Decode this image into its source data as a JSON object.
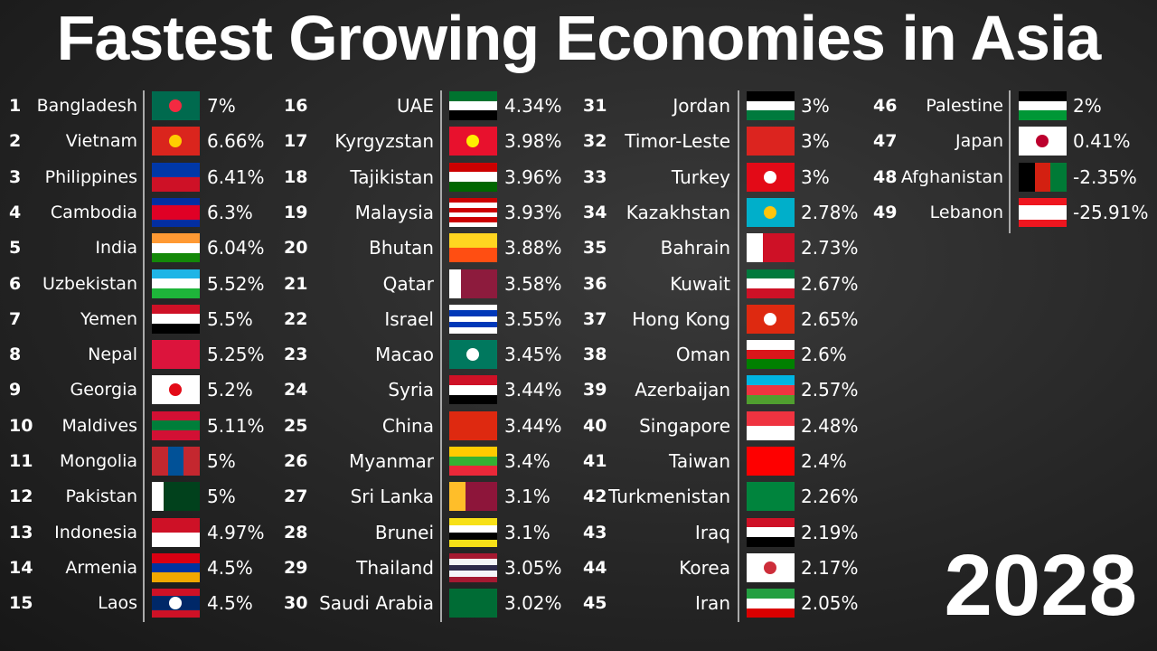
{
  "title": "Fastest Growing Economies in Asia",
  "year": "2028",
  "rows": [
    {
      "rank": "1",
      "country": "Bangladesh",
      "value": "7%"
    },
    {
      "rank": "2",
      "country": "Vietnam",
      "value": "6.66%"
    },
    {
      "rank": "3",
      "country": "Philippines",
      "value": "6.41%"
    },
    {
      "rank": "4",
      "country": "Cambodia",
      "value": "6.3%"
    },
    {
      "rank": "5",
      "country": "India",
      "value": "6.04%"
    },
    {
      "rank": "6",
      "country": "Uzbekistan",
      "value": "5.52%"
    },
    {
      "rank": "7",
      "country": "Yemen",
      "value": "5.5%"
    },
    {
      "rank": "8",
      "country": "Nepal",
      "value": "5.25%"
    },
    {
      "rank": "9",
      "country": "Georgia",
      "value": "5.2%"
    },
    {
      "rank": "10",
      "country": "Maldives",
      "value": "5.11%"
    },
    {
      "rank": "11",
      "country": "Mongolia",
      "value": "5%"
    },
    {
      "rank": "12",
      "country": "Pakistan",
      "value": "5%"
    },
    {
      "rank": "13",
      "country": "Indonesia",
      "value": "4.97%"
    },
    {
      "rank": "14",
      "country": "Armenia",
      "value": "4.5%"
    },
    {
      "rank": "15",
      "country": "Laos",
      "value": "4.5%"
    },
    {
      "rank": "16",
      "country": "UAE",
      "value": "4.34%"
    },
    {
      "rank": "17",
      "country": "Kyrgyzstan",
      "value": "3.98%"
    },
    {
      "rank": "18",
      "country": "Tajikistan",
      "value": "3.96%"
    },
    {
      "rank": "19",
      "country": "Malaysia",
      "value": "3.93%"
    },
    {
      "rank": "20",
      "country": "Bhutan",
      "value": "3.88%"
    },
    {
      "rank": "21",
      "country": "Qatar",
      "value": "3.58%"
    },
    {
      "rank": "22",
      "country": "Israel",
      "value": "3.55%"
    },
    {
      "rank": "23",
      "country": "Macao",
      "value": "3.45%"
    },
    {
      "rank": "24",
      "country": "Syria",
      "value": "3.44%"
    },
    {
      "rank": "25",
      "country": "China",
      "value": "3.44%"
    },
    {
      "rank": "26",
      "country": "Myanmar",
      "value": "3.4%"
    },
    {
      "rank": "27",
      "country": "Sri Lanka",
      "value": "3.1%"
    },
    {
      "rank": "28",
      "country": "Brunei",
      "value": "3.1%"
    },
    {
      "rank": "29",
      "country": "Thailand",
      "value": "3.05%"
    },
    {
      "rank": "30",
      "country": "Saudi Arabia",
      "value": "3.02%"
    },
    {
      "rank": "31",
      "country": "Jordan",
      "value": "3%"
    },
    {
      "rank": "32",
      "country": "Timor-Leste",
      "value": "3%"
    },
    {
      "rank": "33",
      "country": "Turkey",
      "value": "3%"
    },
    {
      "rank": "34",
      "country": "Kazakhstan",
      "value": "2.78%"
    },
    {
      "rank": "35",
      "country": "Bahrain",
      "value": "2.73%"
    },
    {
      "rank": "36",
      "country": "Kuwait",
      "value": "2.67%"
    },
    {
      "rank": "37",
      "country": "Hong Kong",
      "value": "2.65%"
    },
    {
      "rank": "38",
      "country": "Oman",
      "value": "2.6%"
    },
    {
      "rank": "39",
      "country": "Azerbaijan",
      "value": "2.57%"
    },
    {
      "rank": "40",
      "country": "Singapore",
      "value": "2.48%"
    },
    {
      "rank": "41",
      "country": "Taiwan",
      "value": "2.4%"
    },
    {
      "rank": "42",
      "country": "Turkmenistan",
      "value": "2.26%"
    },
    {
      "rank": "43",
      "country": "Iraq",
      "value": "2.19%"
    },
    {
      "rank": "44",
      "country": "Korea",
      "value": "2.17%"
    },
    {
      "rank": "45",
      "country": "Iran",
      "value": "2.05%"
    },
    {
      "rank": "46",
      "country": "Palestine",
      "value": "2%"
    },
    {
      "rank": "47",
      "country": "Japan",
      "value": "0.41%"
    },
    {
      "rank": "48",
      "country": "Afghanistan",
      "value": "-2.35%"
    },
    {
      "rank": "49",
      "country": "Lebanon",
      "value": "-25.91%"
    }
  ]
}
